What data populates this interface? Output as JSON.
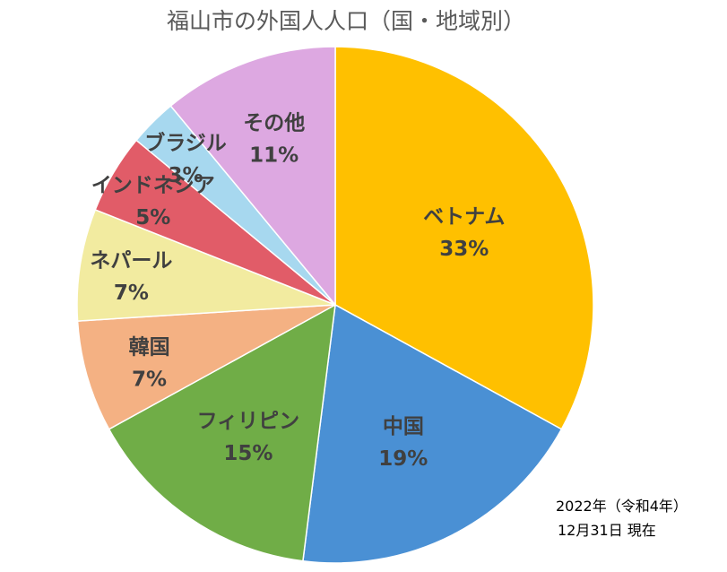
{
  "chart_data": {
    "type": "pie",
    "title": "福山市の外国人人口（国・地域別）",
    "slices": [
      {
        "name": "ベトナム",
        "value": 33,
        "value_label": "33%",
        "color": "#FFC000"
      },
      {
        "name": "中国",
        "value": 19,
        "value_label": "19%",
        "color": "#4A90D4"
      },
      {
        "name": "フィリピン",
        "value": 15,
        "value_label": "15%",
        "color": "#70AD47"
      },
      {
        "name": "韓国",
        "value": 7,
        "value_label": "7%",
        "color": "#F4B183"
      },
      {
        "name": "ネパール",
        "value": 7,
        "value_label": "7%",
        "color": "#F2EBA0"
      },
      {
        "name": "インドネシア",
        "value": 5,
        "value_label": "5%",
        "color": "#E15C68"
      },
      {
        "name": "ブラジル",
        "value": 3,
        "value_label": "3%",
        "color": "#A7D8EF"
      },
      {
        "name": "その他",
        "value": 11,
        "value_label": "11%",
        "color": "#DDA8E1"
      }
    ],
    "start_direction": "12 o'clock",
    "direction": "clockwise",
    "legend": "none"
  },
  "note": {
    "line1": "2022年（令和4年）",
    "line2": "12月31日  現在"
  }
}
